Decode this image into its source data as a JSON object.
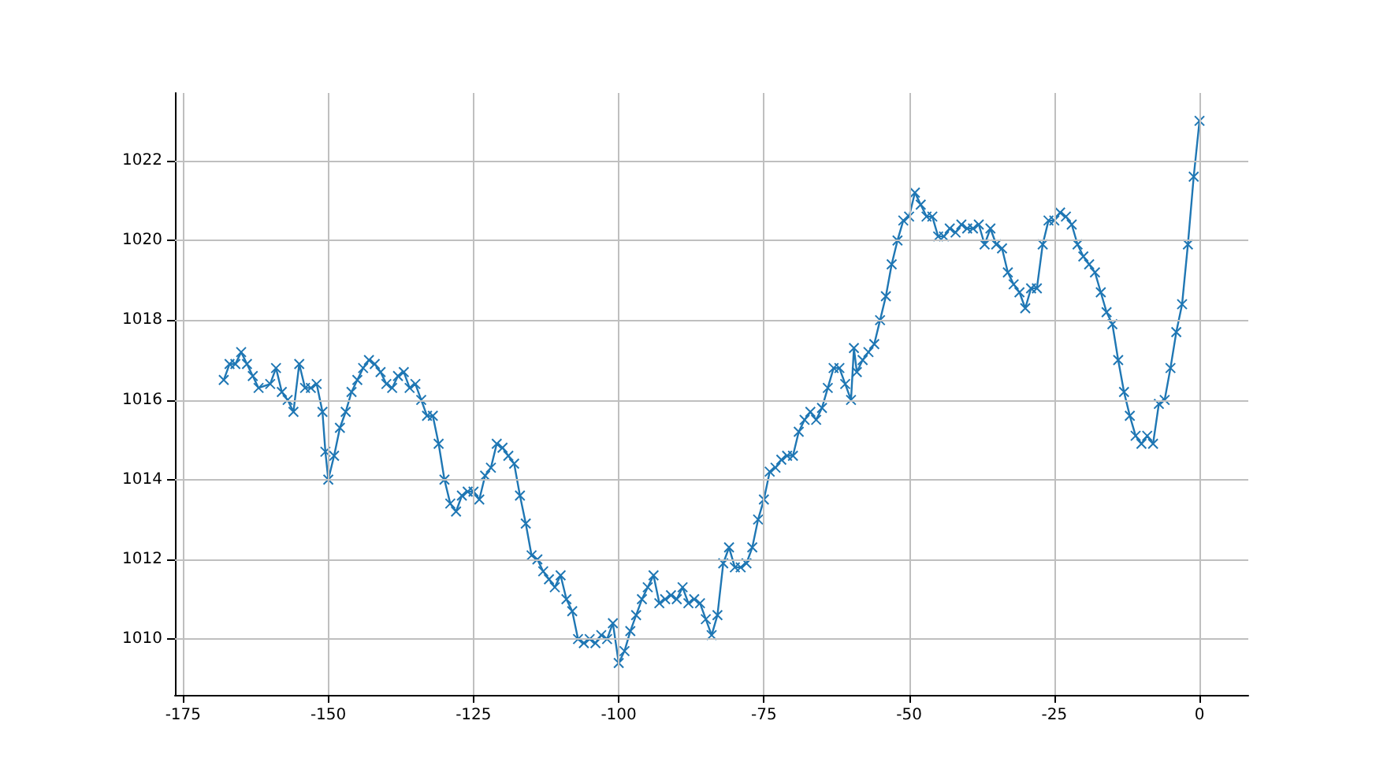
{
  "chart_data": {
    "type": "line",
    "marker": "cross",
    "grid": true,
    "line_style": "solid",
    "xlim": [
      -176.4,
      8.4
    ],
    "xticks": [
      -175,
      -150,
      -125,
      -100,
      -75,
      -50,
      -25,
      0
    ],
    "ylim": [
      1008.6,
      1023.7
    ],
    "yticks": [
      1010,
      1012,
      1014,
      1016,
      1018,
      1020,
      1022
    ],
    "series": [
      {
        "color": "#1f77b4",
        "x": [
          -168,
          -167,
          -166,
          -165,
          -164,
          -163,
          -162,
          -160,
          -159,
          -158,
          -157,
          -156,
          -155,
          -154,
          -153,
          -152,
          -151,
          -150.5,
          -150,
          -149,
          -148,
          -147,
          -146,
          -145,
          -144,
          -143,
          -142,
          -141,
          -140,
          -139,
          -138,
          -137,
          -136,
          -135,
          -134,
          -133,
          -132,
          -131,
          -130,
          -129,
          -128,
          -127,
          -126,
          -125,
          -124,
          -123,
          -122,
          -121,
          -120,
          -119,
          -118,
          -117,
          -116,
          -115,
          -114,
          -113,
          -112,
          -111,
          -110,
          -109,
          -108,
          -107,
          -106,
          -105,
          -104,
          -103,
          -102,
          -101,
          -100,
          -99,
          -98,
          -97,
          -96,
          -95,
          -94,
          -93,
          -92,
          -91,
          -90,
          -89,
          -88,
          -87,
          -86,
          -85,
          -84,
          -83,
          -82,
          -81,
          -80,
          -79,
          -78,
          -77,
          -76,
          -75,
          -74,
          -73,
          -72,
          -71,
          -70,
          -69,
          -68,
          -67,
          -66,
          -65,
          -64,
          -63,
          -62,
          -61,
          -60,
          -59.5,
          -59,
          -58,
          -57,
          -56,
          -55,
          -54,
          -53,
          -52,
          -51,
          -50,
          -49,
          -48,
          -47,
          -46,
          -45,
          -44,
          -43,
          -42,
          -41,
          -40,
          -39,
          -38,
          -37,
          -36,
          -35,
          -34,
          -33,
          -32,
          -31,
          -30,
          -29,
          -28,
          -27,
          -26,
          -25,
          -24,
          -23,
          -22,
          -21,
          -20,
          -19,
          -18,
          -17,
          -16,
          -15,
          -14,
          -13,
          -12,
          -11,
          -10,
          -9,
          -8,
          -7,
          -6,
          -5,
          -4,
          -3,
          -2,
          -1,
          0
        ],
        "values": [
          1016.5,
          1016.9,
          1016.9,
          1017.2,
          1016.9,
          1016.6,
          1016.3,
          1016.4,
          1016.8,
          1016.2,
          1016.0,
          1015.7,
          1016.9,
          1016.3,
          1016.3,
          1016.4,
          1015.7,
          1014.7,
          1014.0,
          1014.6,
          1015.3,
          1015.7,
          1016.2,
          1016.5,
          1016.8,
          1017.0,
          1016.9,
          1016.7,
          1016.4,
          1016.3,
          1016.6,
          1016.7,
          1016.3,
          1016.4,
          1016.0,
          1015.6,
          1015.6,
          1014.9,
          1014.0,
          1013.4,
          1013.2,
          1013.6,
          1013.7,
          1013.7,
          1013.5,
          1014.1,
          1014.3,
          1014.9,
          1014.8,
          1014.6,
          1014.4,
          1013.6,
          1012.9,
          1012.1,
          1012.0,
          1011.7,
          1011.5,
          1011.3,
          1011.6,
          1011.0,
          1010.7,
          1010.0,
          1009.9,
          1010.0,
          1009.9,
          1010.1,
          1010.0,
          1010.4,
          1009.4,
          1009.7,
          1010.2,
          1010.6,
          1011.0,
          1011.3,
          1011.6,
          1010.9,
          1011.0,
          1011.1,
          1011.0,
          1011.3,
          1010.9,
          1011.0,
          1010.9,
          1010.5,
          1010.1,
          1010.6,
          1011.9,
          1012.3,
          1011.8,
          1011.8,
          1011.9,
          1012.3,
          1013.0,
          1013.5,
          1014.2,
          1014.3,
          1014.5,
          1014.6,
          1014.6,
          1015.2,
          1015.5,
          1015.7,
          1015.5,
          1015.8,
          1016.3,
          1016.8,
          1016.8,
          1016.4,
          1016.0,
          1017.3,
          1016.7,
          1017.0,
          1017.2,
          1017.4,
          1018.0,
          1018.6,
          1019.4,
          1020.0,
          1020.5,
          1020.6,
          1021.2,
          1020.9,
          1020.6,
          1020.6,
          1020.1,
          1020.1,
          1020.3,
          1020.2,
          1020.4,
          1020.3,
          1020.3,
          1020.4,
          1019.9,
          1020.3,
          1019.9,
          1019.8,
          1019.2,
          1018.9,
          1018.7,
          1018.3,
          1018.8,
          1018.8,
          1019.9,
          1020.5,
          1020.5,
          1020.7,
          1020.6,
          1020.4,
          1019.9,
          1019.6,
          1019.4,
          1019.2,
          1018.7,
          1018.2,
          1017.9,
          1017.0,
          1016.2,
          1015.6,
          1015.1,
          1014.9,
          1015.1,
          1014.9,
          1015.9,
          1016.0,
          1016.8,
          1017.7,
          1018.4,
          1019.9,
          1021.6,
          1023.0
        ]
      }
    ]
  }
}
